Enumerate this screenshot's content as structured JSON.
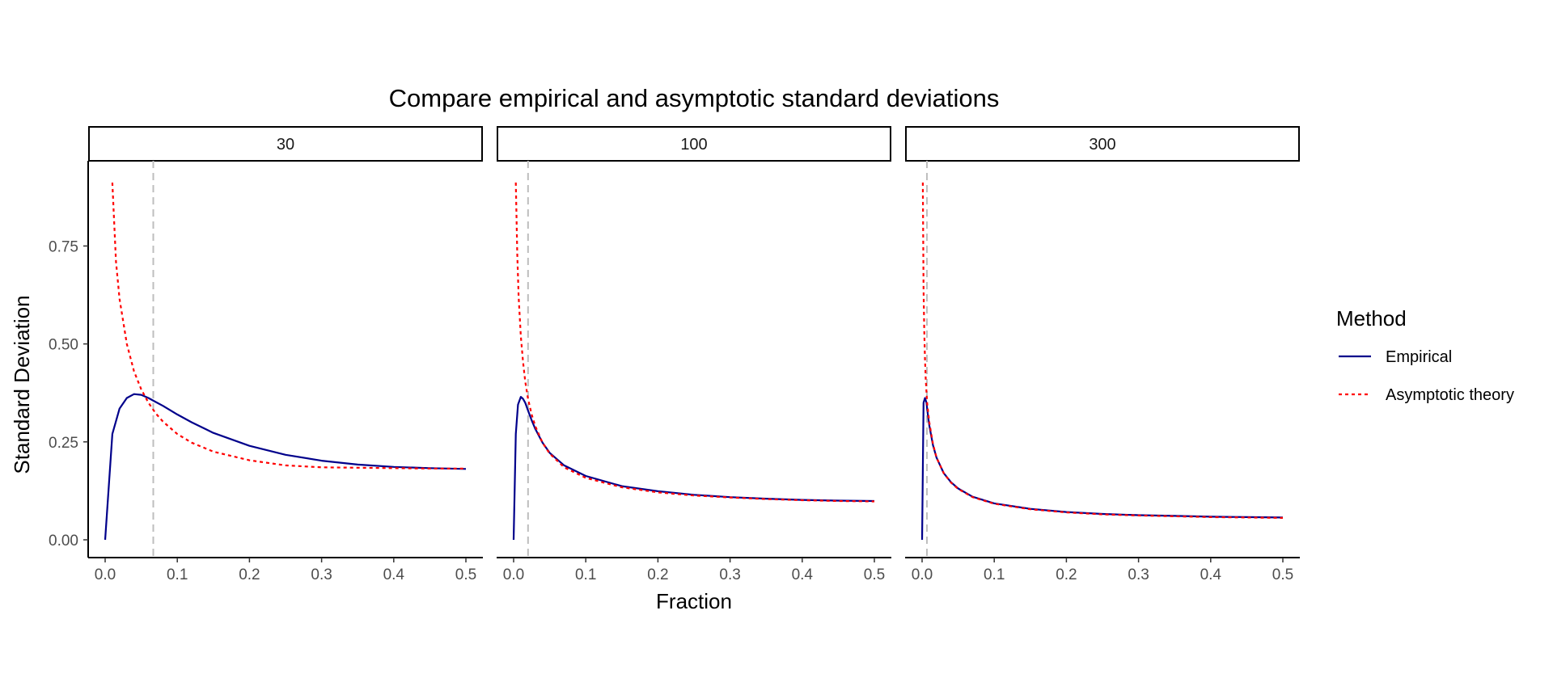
{
  "chart_data": {
    "type": "line",
    "title": "Compare empirical and asymptotic standard deviations",
    "xlabel": "Fraction",
    "ylabel": "Standard Deviation",
    "xlim": [
      0,
      0.5
    ],
    "ylim": [
      0,
      0.92
    ],
    "x_ticks": [
      0.0,
      0.1,
      0.2,
      0.3,
      0.4,
      0.5
    ],
    "x_tick_labels": [
      "0.0",
      "0.1",
      "0.2",
      "0.3",
      "0.4",
      "0.5"
    ],
    "y_ticks": [
      0.0,
      0.25,
      0.5,
      0.75
    ],
    "y_tick_labels": [
      "0.00",
      "0.25",
      "0.50",
      "0.75"
    ],
    "grid": false,
    "legend": {
      "title": "Method",
      "position": "right",
      "entries": [
        {
          "label": "Empirical",
          "color": "#00008B",
          "dash": "solid"
        },
        {
          "label": "Asymptotic theory",
          "color": "#FF0000",
          "dash": "dotted"
        }
      ]
    },
    "panels": [
      {
        "label": "30",
        "vline": 0.0667,
        "series": [
          {
            "name": "Empirical",
            "x": [
              0.0,
              0.01,
              0.02,
              0.03,
              0.04,
              0.05,
              0.06,
              0.07,
              0.08,
              0.1,
              0.12,
              0.15,
              0.2,
              0.25,
              0.3,
              0.35,
              0.4,
              0.45,
              0.5
            ],
            "y": [
              0.0,
              0.27,
              0.335,
              0.362,
              0.372,
              0.37,
              0.362,
              0.352,
              0.342,
              0.32,
              0.3,
              0.273,
              0.24,
              0.217,
              0.202,
              0.192,
              0.186,
              0.183,
              0.181
            ]
          },
          {
            "name": "Asymptotic theory",
            "x": [
              0.01,
              0.015,
              0.02,
              0.03,
              0.04,
              0.05,
              0.06,
              0.07,
              0.08,
              0.1,
              0.12,
              0.15,
              0.2,
              0.25,
              0.3,
              0.35,
              0.4,
              0.45,
              0.5
            ],
            "y": [
              0.912,
              0.71,
              0.615,
              0.5,
              0.43,
              0.384,
              0.35,
              0.323,
              0.302,
              0.27,
              0.248,
              0.225,
              0.203,
              0.19,
              0.185,
              0.184,
              0.183,
              0.182,
              0.182
            ]
          }
        ]
      },
      {
        "label": "100",
        "vline": 0.02,
        "series": [
          {
            "name": "Empirical",
            "x": [
              0.0,
              0.003,
              0.006,
              0.01,
              0.013,
              0.016,
              0.02,
              0.025,
              0.03,
              0.04,
              0.05,
              0.07,
              0.1,
              0.15,
              0.2,
              0.25,
              0.3,
              0.35,
              0.4,
              0.45,
              0.5
            ],
            "y": [
              0.0,
              0.27,
              0.345,
              0.365,
              0.36,
              0.35,
              0.33,
              0.305,
              0.283,
              0.248,
              0.222,
              0.19,
              0.163,
              0.137,
              0.124,
              0.115,
              0.109,
              0.105,
              0.102,
              0.1,
              0.099
            ]
          },
          {
            "name": "Asymptotic theory",
            "x": [
              0.003,
              0.005,
              0.007,
              0.01,
              0.013,
              0.016,
              0.02,
              0.025,
              0.03,
              0.04,
              0.05,
              0.07,
              0.1,
              0.15,
              0.2,
              0.25,
              0.3,
              0.35,
              0.4,
              0.45,
              0.5
            ],
            "y": [
              0.912,
              0.73,
              0.62,
              0.52,
              0.455,
              0.405,
              0.36,
              0.32,
              0.29,
              0.248,
              0.22,
              0.185,
              0.158,
              0.134,
              0.121,
              0.113,
              0.108,
              0.104,
              0.101,
              0.099,
              0.098
            ]
          }
        ]
      },
      {
        "label": "300",
        "vline": 0.0067,
        "series": [
          {
            "name": "Empirical",
            "x": [
              0.0,
              0.002,
              0.004,
              0.006,
              0.008,
              0.01,
              0.015,
              0.02,
              0.03,
              0.04,
              0.05,
              0.07,
              0.1,
              0.15,
              0.2,
              0.25,
              0.3,
              0.35,
              0.4,
              0.45,
              0.5
            ],
            "y": [
              0.0,
              0.35,
              0.362,
              0.35,
              0.32,
              0.292,
              0.242,
              0.21,
              0.17,
              0.147,
              0.131,
              0.11,
              0.093,
              0.079,
              0.071,
              0.066,
              0.063,
              0.061,
              0.059,
              0.058,
              0.057
            ]
          },
          {
            "name": "Asymptotic theory",
            "x": [
              0.001,
              0.002,
              0.003,
              0.004,
              0.005,
              0.007,
              0.01,
              0.015,
              0.02,
              0.03,
              0.04,
              0.05,
              0.07,
              0.1,
              0.15,
              0.2,
              0.25,
              0.3,
              0.35,
              0.4,
              0.45,
              0.5
            ],
            "y": [
              0.912,
              0.64,
              0.53,
              0.46,
              0.41,
              0.35,
              0.3,
              0.245,
              0.21,
              0.17,
              0.146,
              0.13,
              0.109,
              0.092,
              0.078,
              0.07,
              0.065,
              0.062,
              0.06,
              0.058,
              0.057,
              0.056
            ]
          }
        ]
      }
    ]
  }
}
